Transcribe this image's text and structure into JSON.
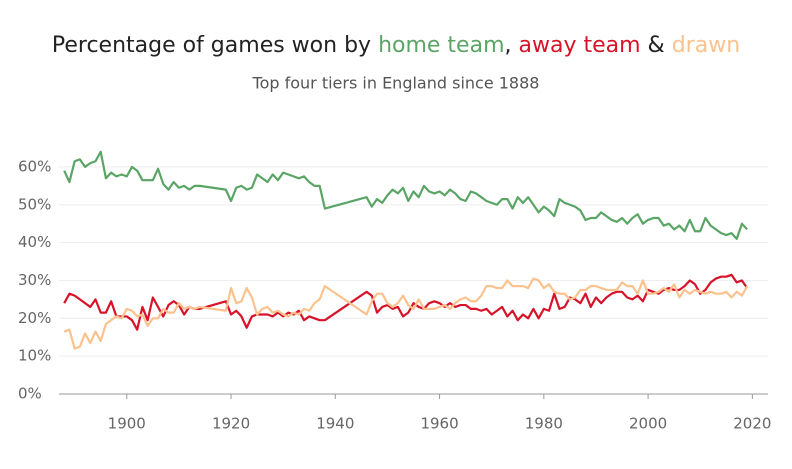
{
  "chart_data": {
    "type": "line",
    "title": "Percentage of games won by",
    "title_separators": [
      ",",
      "&"
    ],
    "subtitle": "Top four tiers in England since 1888",
    "x": [
      1888,
      1889,
      1890,
      1891,
      1892,
      1893,
      1894,
      1895,
      1896,
      1897,
      1898,
      1899,
      1900,
      1901,
      1902,
      1903,
      1904,
      1905,
      1906,
      1907,
      1908,
      1909,
      1910,
      1911,
      1912,
      1913,
      1914,
      1919,
      1920,
      1921,
      1922,
      1923,
      1924,
      1925,
      1926,
      1927,
      1928,
      1929,
      1930,
      1931,
      1932,
      1933,
      1934,
      1935,
      1936,
      1937,
      1938,
      1946,
      1947,
      1948,
      1949,
      1950,
      1951,
      1952,
      1953,
      1954,
      1955,
      1956,
      1957,
      1958,
      1959,
      1960,
      1961,
      1962,
      1963,
      1964,
      1965,
      1966,
      1967,
      1968,
      1969,
      1970,
      1971,
      1972,
      1973,
      1974,
      1975,
      1976,
      1977,
      1978,
      1979,
      1980,
      1981,
      1982,
      1983,
      1984,
      1985,
      1986,
      1987,
      1988,
      1989,
      1990,
      1991,
      1992,
      1993,
      1994,
      1995,
      1996,
      1997,
      1998,
      1999,
      2000,
      2001,
      2002,
      2003,
      2004,
      2005,
      2006,
      2007,
      2008,
      2009,
      2010,
      2011,
      2012,
      2013,
      2014,
      2015,
      2016,
      2017,
      2018,
      2019
    ],
    "series": [
      {
        "name": "home team",
        "color": "#5aa566",
        "values": [
          59,
          56,
          61.5,
          62,
          60,
          61,
          61.5,
          64,
          57,
          58.5,
          57.5,
          58,
          57.5,
          60,
          59,
          56.5,
          56.5,
          56.5,
          59.5,
          55.5,
          54,
          56,
          54.5,
          55,
          54,
          55,
          55,
          54,
          51,
          54.5,
          55,
          54,
          54.5,
          58,
          57,
          56,
          58,
          56.5,
          58.5,
          58,
          57.5,
          57,
          57.5,
          56,
          55,
          55,
          49,
          52,
          49.5,
          51.5,
          50.5,
          52.5,
          54,
          53,
          54.5,
          51,
          53.5,
          52,
          55,
          53.5,
          53,
          53.5,
          52.5,
          54,
          53,
          51.5,
          51,
          53.5,
          53,
          52,
          51,
          50.5,
          50,
          51.5,
          51.5,
          49,
          52,
          50.5,
          52,
          50,
          48,
          49.5,
          48.5,
          47,
          51.5,
          50.5,
          50,
          49.5,
          48.5,
          46,
          46.5,
          46.5,
          48,
          47,
          46,
          45.5,
          46.5,
          45,
          46.5,
          47.5,
          45,
          46,
          46.5,
          46.5,
          44.5,
          45,
          43.5,
          44.5,
          43,
          46,
          43,
          43,
          46.5,
          44.5,
          43.5,
          42.5,
          42,
          42.5,
          41,
          45,
          43.5
        ]
      },
      {
        "name": "away team",
        "color": "#d7132a",
        "values": [
          24,
          26.5,
          26,
          25,
          24,
          23,
          25,
          21.5,
          21.5,
          24.5,
          20.5,
          20.5,
          20.5,
          19.5,
          17,
          23,
          19.5,
          25.5,
          23,
          20.5,
          23.5,
          24.5,
          23.5,
          21,
          23,
          22.5,
          22.5,
          24.5,
          21,
          22,
          20.5,
          17.5,
          20.5,
          21,
          21,
          21,
          20.5,
          21.5,
          20.5,
          21.5,
          21,
          22,
          19.5,
          20.5,
          20,
          19.5,
          19.5,
          27,
          26,
          21.5,
          23,
          23.5,
          22.5,
          23,
          20.5,
          21.5,
          24,
          23,
          22.5,
          24,
          24.5,
          24,
          23,
          24,
          23,
          23.5,
          23.5,
          22.5,
          22.5,
          22,
          22.5,
          21,
          22,
          23,
          20.5,
          22,
          19.5,
          21,
          20,
          22.5,
          20,
          22.5,
          22,
          26.5,
          22.5,
          23,
          25.5,
          25,
          24,
          26.5,
          23,
          25.5,
          24,
          25.5,
          26.5,
          27,
          27,
          25.5,
          25,
          26,
          24.5,
          27.5,
          27,
          26.5,
          27.5,
          28,
          27.5,
          27.5,
          28.5,
          30,
          29,
          26.5,
          27.5,
          29.5,
          30.5,
          31,
          31,
          31.5,
          29.5,
          30,
          28
        ]
      },
      {
        "name": "drawn",
        "color": "#fcc28e",
        "values": [
          16.5,
          17,
          12,
          12.5,
          16,
          13.5,
          16.5,
          14,
          18.5,
          19.5,
          20.5,
          20,
          22.5,
          22,
          20.5,
          21,
          18,
          20,
          20,
          22.5,
          21.5,
          21.5,
          24,
          22.5,
          23,
          22.5,
          23,
          22,
          28,
          24,
          24.5,
          28,
          25.5,
          21,
          22.5,
          23,
          21.5,
          22,
          21,
          20.5,
          21.5,
          21,
          22.5,
          22,
          24,
          25,
          28.5,
          21,
          24.5,
          26.5,
          26.5,
          24,
          23,
          24,
          26,
          23.5,
          22.5,
          25,
          22.5,
          22.5,
          22.5,
          23,
          23.5,
          22.5,
          24,
          25,
          25.5,
          24.5,
          24.5,
          26,
          28.5,
          28.5,
          28,
          28,
          30,
          28.5,
          28.5,
          28.5,
          28,
          30.5,
          30,
          28,
          29,
          27,
          26.5,
          26.5,
          25,
          25.5,
          27.5,
          27.5,
          28.5,
          28.5,
          28,
          27.5,
          27.5,
          27.5,
          29.5,
          28.5,
          28.5,
          26.5,
          30,
          26.5,
          26.5,
          27,
          28,
          27,
          29,
          25.5,
          27.5,
          26.5,
          27.5,
          27,
          26.5,
          27,
          26.5,
          26.5,
          27,
          25.5,
          27,
          26,
          28.5
        ]
      }
    ],
    "xlim": [
      1887,
      2023
    ],
    "xticks": [
      1900,
      1920,
      1940,
      1960,
      1980,
      2000,
      2020
    ],
    "ylim": [
      0,
      65
    ],
    "yticks": [
      {
        "value": 0,
        "label": "0%"
      },
      {
        "value": 10,
        "label": "10%"
      },
      {
        "value": 20,
        "label": "20%"
      },
      {
        "value": 30,
        "label": "30%"
      },
      {
        "value": 40,
        "label": "40%"
      },
      {
        "value": 50,
        "label": "50%"
      },
      {
        "value": 60,
        "label": "60%"
      }
    ],
    "grid": true
  }
}
